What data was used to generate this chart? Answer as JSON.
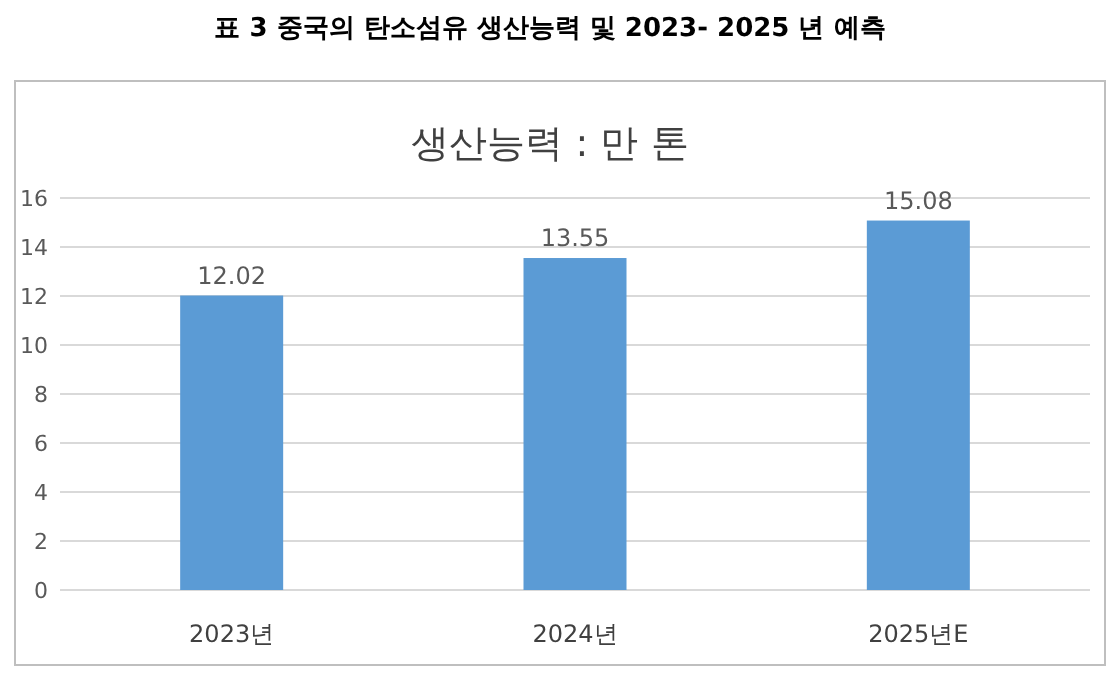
{
  "chart_data": {
    "type": "bar",
    "title": "표 3 중국의 탄소섬유 생산능력 및 2023- 2025 년 예측",
    "subtitle": "생산능력 : 만 톤",
    "categories": [
      "2023년",
      "2024년",
      "2025년E"
    ],
    "values": [
      12.02,
      13.55,
      15.08
    ],
    "color": "#5b9bd5",
    "ylim": [
      0,
      16
    ],
    "yticks": [
      0,
      2,
      4,
      6,
      8,
      10,
      12,
      14,
      16
    ],
    "grid": "y",
    "data_labels": true
  }
}
